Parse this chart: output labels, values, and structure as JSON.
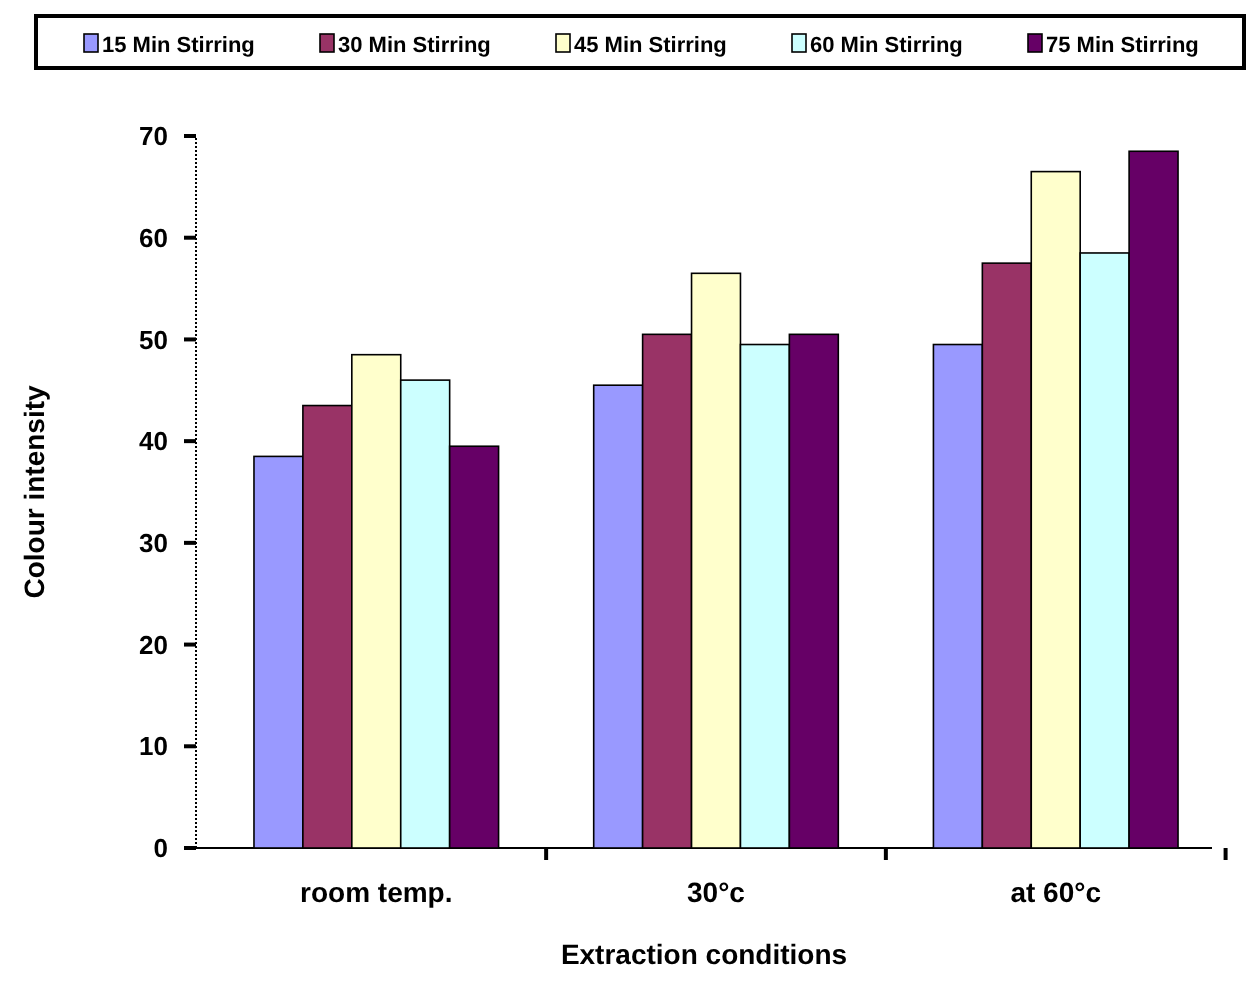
{
  "chart_data": {
    "type": "bar",
    "xlabel": "Extraction conditions",
    "ylabel": "Colour intensity",
    "categories": [
      "room temp.",
      "30°c",
      "at 60°c"
    ],
    "series": [
      {
        "name": "15 Min Stirring",
        "color": "#9999ff",
        "values": [
          38.5,
          45.5,
          49.5
        ]
      },
      {
        "name": "30 Min Stirring",
        "color": "#993366",
        "values": [
          43.5,
          50.5,
          57.5
        ]
      },
      {
        "name": "45 Min Stirring",
        "color": "#ffffcc",
        "values": [
          48.5,
          56.5,
          66.5
        ]
      },
      {
        "name": "60 Min Stirring",
        "color": "#ccffff",
        "values": [
          46,
          49.5,
          58.5
        ]
      },
      {
        "name": "75 Min Stirring",
        "color": "#660066",
        "values": [
          39.5,
          50.5,
          68.5
        ]
      }
    ],
    "ylim": [
      0,
      70
    ],
    "yticks": [
      0,
      10,
      20,
      30,
      40,
      50,
      60,
      70
    ],
    "grid": false,
    "legend": "top"
  }
}
